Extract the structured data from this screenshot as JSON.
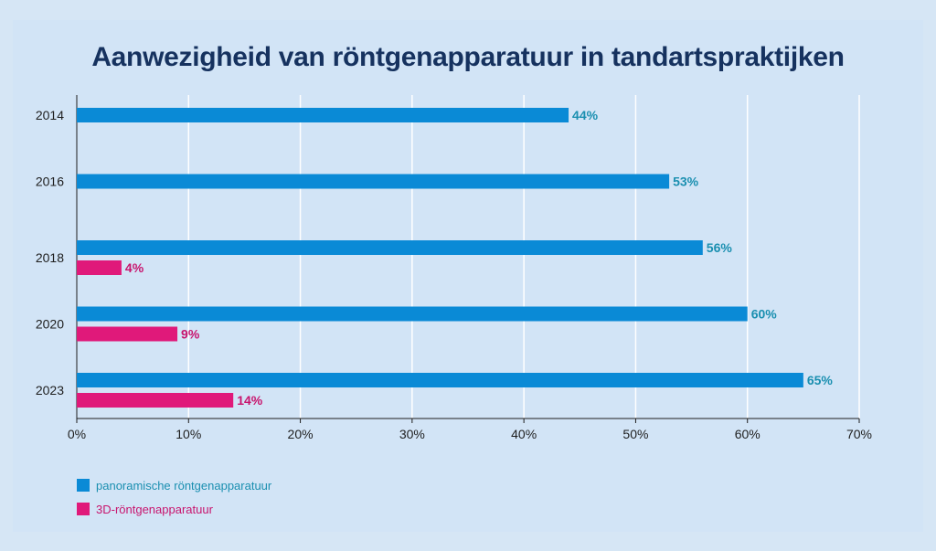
{
  "chart_data": {
    "type": "bar",
    "orientation": "horizontal",
    "title": "Aanwezigheid van röntgenapparatuur in tandartspraktijken",
    "categories": [
      "2014",
      "2016",
      "2018",
      "2020",
      "2023"
    ],
    "series": [
      {
        "name": "panoramische röntgenapparatuur",
        "color": "#0a8ad6",
        "label_color": "#1a8fb0",
        "values": [
          44,
          53,
          56,
          60,
          65
        ],
        "labels": [
          "44%",
          "53%",
          "56%",
          "60%",
          "65%"
        ]
      },
      {
        "name": "3D-röntgenapparatuur",
        "color": "#e0197a",
        "label_color": "#c8156e",
        "values": [
          null,
          null,
          4,
          9,
          14
        ],
        "labels": [
          null,
          null,
          "4%",
          "9%",
          "14%"
        ]
      }
    ],
    "xlim": [
      0,
      70
    ],
    "xticks": [
      0,
      10,
      20,
      30,
      40,
      50,
      60,
      70
    ],
    "xtick_labels": [
      "0%",
      "10%",
      "20%",
      "30%",
      "40%",
      "50%",
      "60%",
      "70%"
    ],
    "grid": true,
    "legend": "bottom-left"
  }
}
